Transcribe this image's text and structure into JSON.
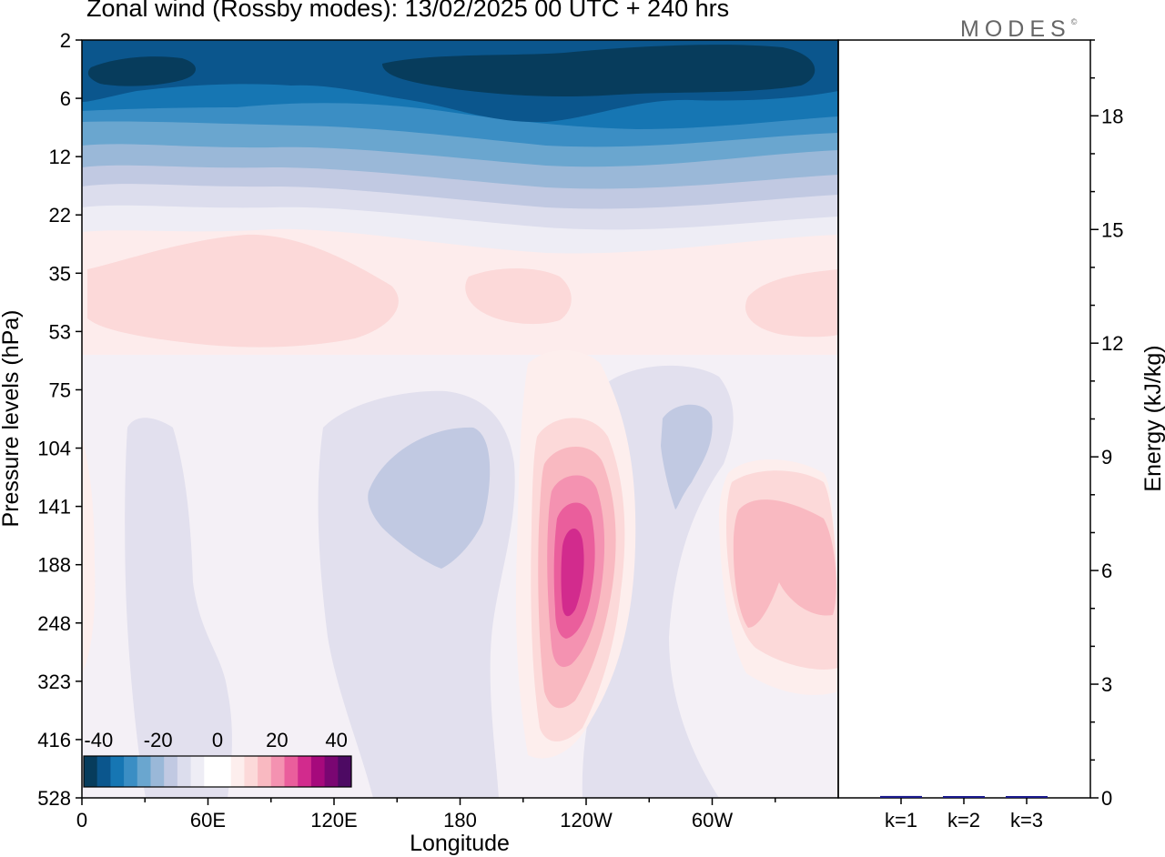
{
  "title": "Zonal wind (Rossby modes):  13/02/2025  00 UTC  + 240 hrs",
  "logo": {
    "text": "MODES",
    "mark": "©"
  },
  "colors": {
    "neg": [
      "#073c5c",
      "#0b568d",
      "#1676b3",
      "#3b8ec4",
      "#6aa6cf",
      "#9ab8d8",
      "#c1c9e2",
      "#dcdded",
      "#eeedf5"
    ],
    "zero": "#ffffff",
    "pos": [
      "#fdeeed",
      "#fcd9d9",
      "#f9b9c1",
      "#f492b1",
      "#ea5e9c",
      "#d22b8d",
      "#a6097c",
      "#7a0672",
      "#4d0a63"
    ]
  },
  "chart_data": [
    {
      "type": "heatmap",
      "title": "Zonal wind (Rossby modes):  13/02/2025  00 UTC  + 240 hrs",
      "xlabel": "Longitude",
      "ylabel": "Pressure levels (hPa)",
      "x_ticks": [
        "0",
        "60E",
        "120E",
        "180",
        "120W",
        "60W"
      ],
      "x_tick_degrees": [
        0,
        60,
        120,
        180,
        240,
        300
      ],
      "x_range_degrees": [
        0,
        360
      ],
      "y_ticks": [
        "2",
        "6",
        "12",
        "22",
        "35",
        "53",
        "75",
        "104",
        "141",
        "188",
        "248",
        "323",
        "416",
        "528"
      ],
      "y_axis": "pressure levels, top to bottom",
      "colorbar": {
        "ticks": [
          "-40",
          "-20",
          "0",
          "20",
          "40"
        ],
        "range": [
          -45,
          45
        ],
        "step": 5
      },
      "features": [
        {
          "level": "2-12 hPa",
          "lon_range": [
            0,
            360
          ],
          "value": -35
        },
        {
          "level": "35-53 hPa",
          "lon_range": [
            0,
            150
          ],
          "value": 8
        },
        {
          "level": "104-248 hPa",
          "lon_range": [
            140,
            195
          ],
          "value": -8
        },
        {
          "level": "104-323 hPa",
          "lon_range": [
            220,
            255
          ],
          "value": 40
        },
        {
          "level": "104-248 hPa",
          "lon_range": [
            275,
            300
          ],
          "value": -7
        },
        {
          "level": "141-248 hPa",
          "lon_range": [
            315,
            360
          ],
          "value": 15
        }
      ]
    },
    {
      "type": "bar",
      "ylabel": "Energy (kJ/kg)",
      "categories": [
        "k=1",
        "k=2",
        "k=3"
      ],
      "values": [
        0.05,
        0.03,
        0.04
      ],
      "ylim": [
        0,
        20
      ],
      "y_ticks": [
        "0",
        "3",
        "6",
        "9",
        "12",
        "15",
        "18"
      ],
      "bar_color": "#1a1a8c"
    }
  ]
}
